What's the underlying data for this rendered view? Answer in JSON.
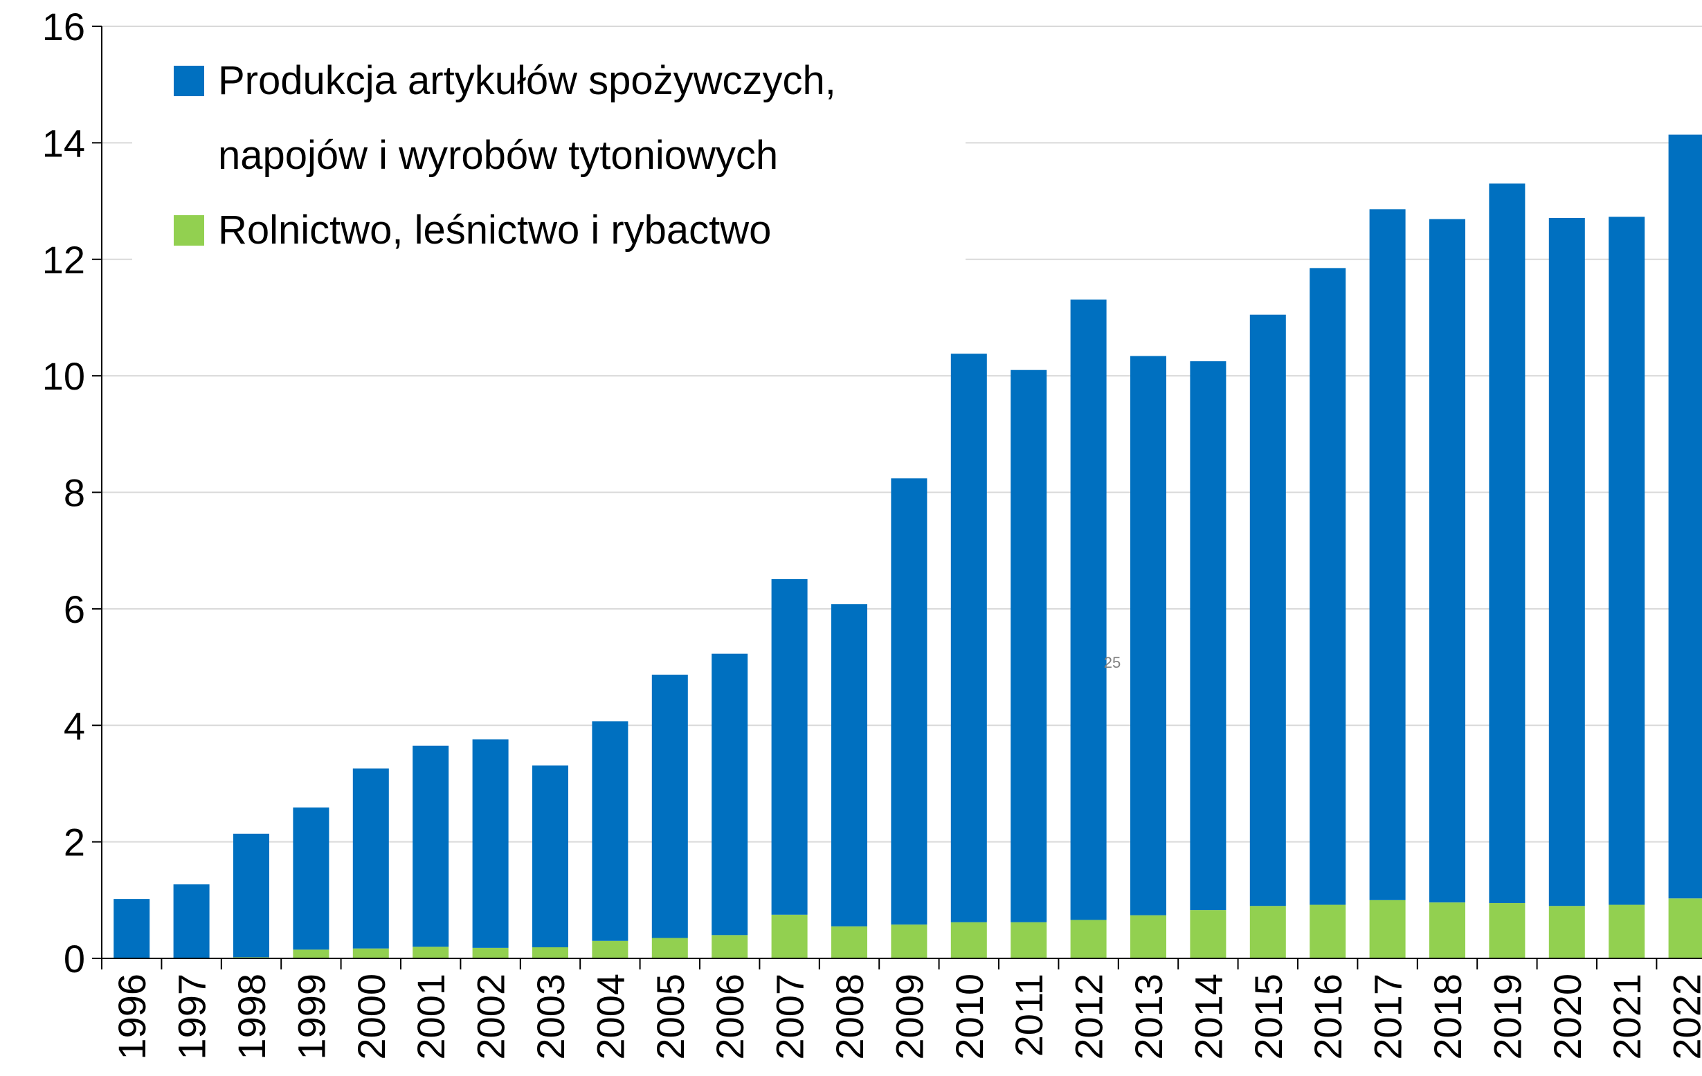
{
  "chart_data": {
    "type": "bar",
    "stacked": true,
    "categories": [
      "1996",
      "1997",
      "1998",
      "1999",
      "2000",
      "2001",
      "2002",
      "2003",
      "2004",
      "2005",
      "2006",
      "2007",
      "2008",
      "2009",
      "2010",
      "2011",
      "2012",
      "2013",
      "2014",
      "2015",
      "2016",
      "2017",
      "2018",
      "2019",
      "2020",
      "2021",
      "2022"
    ],
    "series": [
      {
        "name": "Produkcja artykułów spożywczych, napojów i wyrobów tytoniowych",
        "color": "#0070c0",
        "values": [
          1.02,
          1.27,
          2.12,
          2.44,
          3.09,
          3.45,
          3.58,
          3.12,
          3.77,
          4.52,
          4.83,
          5.76,
          5.53,
          7.66,
          9.76,
          9.48,
          10.65,
          9.6,
          9.42,
          10.15,
          10.93,
          11.86,
          11.73,
          12.35,
          11.81,
          11.81,
          13.11
        ]
      },
      {
        "name": "Rolnictwo, leśnictwo i rybactwo",
        "color": "#92d050",
        "values": [
          0,
          0,
          0.02,
          0.15,
          0.17,
          0.2,
          0.18,
          0.19,
          0.3,
          0.35,
          0.4,
          0.75,
          0.55,
          0.58,
          0.62,
          0.62,
          0.66,
          0.74,
          0.83,
          0.9,
          0.92,
          1.0,
          0.96,
          0.95,
          0.9,
          0.92,
          1.03
        ]
      }
    ],
    "ylim": [
      0,
      16
    ],
    "yticks": [
      0,
      2,
      4,
      6,
      8,
      10,
      12,
      14,
      16
    ],
    "grid": true,
    "legend": "top-left",
    "annotation": "25"
  }
}
